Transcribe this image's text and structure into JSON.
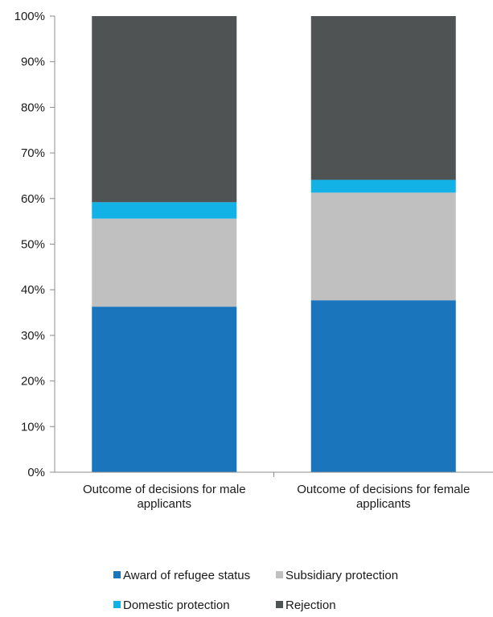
{
  "chart_data": {
    "type": "bar",
    "stacked": true,
    "categories": [
      [
        "Outcome of decisions for male",
        "applicants"
      ],
      [
        "Outcome of decisions for female",
        "applicants"
      ]
    ],
    "series": [
      {
        "name": "Award of refugee status",
        "color": "#1b75bc",
        "values": [
          36.3,
          37.7
        ]
      },
      {
        "name": "Subsidiary protection",
        "color": "#c0c0c0",
        "values": [
          19.3,
          23.6
        ]
      },
      {
        "name": "Domestic protection",
        "color": "#12b2e6",
        "values": [
          3.6,
          2.8
        ]
      },
      {
        "name": "Rejection",
        "color": "#505354",
        "values": [
          40.8,
          35.9
        ]
      }
    ],
    "ylim": [
      0,
      100
    ],
    "yticks": [
      "0%",
      "10%",
      "20%",
      "30%",
      "40%",
      "50%",
      "60%",
      "70%",
      "80%",
      "90%",
      "100%"
    ],
    "legend_position": "bottom",
    "grid": false,
    "title": "",
    "xlabel": "",
    "ylabel": ""
  }
}
